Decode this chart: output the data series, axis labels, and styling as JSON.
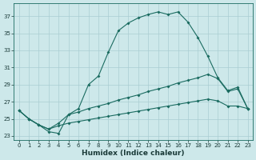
{
  "xlabel": "Humidex (Indice chaleur)",
  "background_color": "#cde8ea",
  "grid_color": "#aacdd2",
  "line_color": "#1a6b60",
  "xlim": [
    -0.5,
    23.5
  ],
  "ylim": [
    22.5,
    38.5
  ],
  "yticks": [
    23,
    25,
    27,
    29,
    31,
    33,
    35,
    37
  ],
  "xticks": [
    0,
    1,
    2,
    3,
    4,
    5,
    6,
    7,
    8,
    9,
    10,
    11,
    12,
    13,
    14,
    15,
    16,
    17,
    18,
    19,
    20,
    21,
    22,
    23
  ],
  "line1_x": [
    0,
    1,
    2,
    3,
    4,
    5,
    6,
    7,
    8,
    9,
    10,
    11,
    12,
    13,
    14,
    15,
    16,
    17,
    18,
    19,
    20,
    21,
    22,
    23
  ],
  "line1_y": [
    26.0,
    25.0,
    24.3,
    23.5,
    23.3,
    25.5,
    26.2,
    29.0,
    30.0,
    32.8,
    35.3,
    36.2,
    36.8,
    37.2,
    37.5,
    37.2,
    37.5,
    36.3,
    34.5,
    32.3,
    29.8,
    28.3,
    28.7,
    26.2
  ],
  "line2_x": [
    0,
    1,
    2,
    3,
    4,
    5,
    6,
    7,
    8,
    9,
    10,
    11,
    12,
    13,
    14,
    15,
    16,
    17,
    18,
    19,
    20,
    21,
    22,
    23
  ],
  "line2_y": [
    26.0,
    25.0,
    24.3,
    23.8,
    24.5,
    25.5,
    25.8,
    26.2,
    26.5,
    26.8,
    27.2,
    27.5,
    27.8,
    28.2,
    28.5,
    28.8,
    29.2,
    29.5,
    29.8,
    30.2,
    29.7,
    28.2,
    28.5,
    26.2
  ],
  "line3_x": [
    0,
    1,
    2,
    3,
    4,
    5,
    6,
    7,
    8,
    9,
    10,
    11,
    12,
    13,
    14,
    15,
    16,
    17,
    18,
    19,
    20,
    21,
    22,
    23
  ],
  "line3_y": [
    26.0,
    25.0,
    24.3,
    23.8,
    24.2,
    24.5,
    24.7,
    24.9,
    25.1,
    25.3,
    25.5,
    25.7,
    25.9,
    26.1,
    26.3,
    26.5,
    26.7,
    26.9,
    27.1,
    27.3,
    27.1,
    26.5,
    26.5,
    26.2
  ],
  "marker_size": 2.0,
  "line_width": 0.8,
  "tick_fontsize": 5.0,
  "xlabel_fontsize": 6.5
}
